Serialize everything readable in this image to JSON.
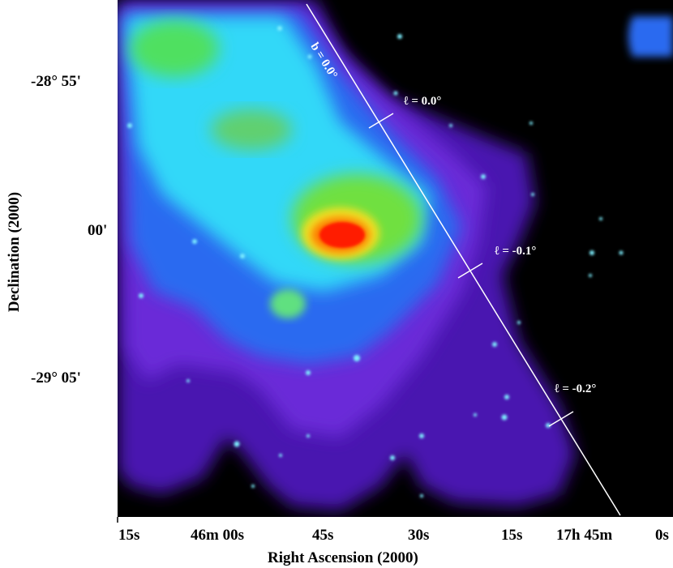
{
  "axes": {
    "ylabel": "Declination (2000)",
    "xlabel": "Right Ascension (2000)",
    "yticks": [
      "-28° 55'",
      "00'",
      "-29° 05'"
    ],
    "xticks": [
      "15s",
      "46m 00s",
      "45s",
      "30s",
      "15s",
      "17h 45m",
      "0s"
    ]
  },
  "overlay": {
    "b_label": "b = 0.0°",
    "l_labels": [
      "ℓ = 0.0°",
      "ℓ = -0.1°",
      "ℓ = -0.2°"
    ]
  },
  "colors": {
    "background": "#000000",
    "low": "#3a10a0",
    "mid": "#30e0ff",
    "high": "#ff1a00",
    "line": "#ffffff"
  }
}
